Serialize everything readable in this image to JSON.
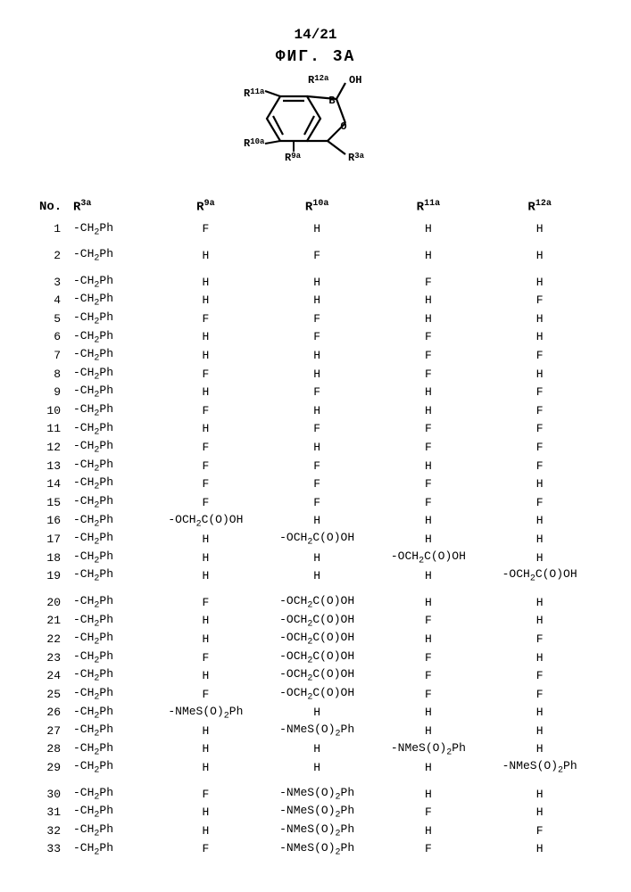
{
  "page_number": "14/21",
  "figure_title": "ФИГ. 3A",
  "structure_labels": {
    "R3a": "R³ᵃ",
    "R9a": "R⁹ᵃ",
    "R10a": "R¹⁰ᵃ",
    "R11a": "R¹¹ᵃ",
    "R12a": "R¹²ᵃ",
    "OH": "OH"
  },
  "chem": {
    "CH2Ph": "CH₂Ph",
    "OCH2COOH": "OCH₂C(O)OH",
    "NMeSO2Ph": "NMeS(O)₂Ph"
  },
  "columns": [
    "No.",
    "R³ᵃ",
    "R⁹ᵃ",
    "R¹⁰ᵃ",
    "R¹¹ᵃ",
    "R¹²ᵃ"
  ],
  "rows": [
    {
      "no": "1",
      "r3a": "CH2Ph",
      "r9a": "F",
      "r10a": "H",
      "r11a": "H",
      "r12a": "H",
      "gap": true
    },
    {
      "no": "2",
      "r3a": "CH2Ph",
      "r9a": "H",
      "r10a": "F",
      "r11a": "H",
      "r12a": "H",
      "gap": true
    },
    {
      "no": "3",
      "r3a": "CH2Ph",
      "r9a": "H",
      "r10a": "H",
      "r11a": "F",
      "r12a": "H"
    },
    {
      "no": "4",
      "r3a": "CH2Ph",
      "r9a": "H",
      "r10a": "H",
      "r11a": "H",
      "r12a": "F"
    },
    {
      "no": "5",
      "r3a": "CH2Ph",
      "r9a": "F",
      "r10a": "F",
      "r11a": "H",
      "r12a": "H"
    },
    {
      "no": "6",
      "r3a": "CH2Ph",
      "r9a": "H",
      "r10a": "F",
      "r11a": "F",
      "r12a": "H"
    },
    {
      "no": "7",
      "r3a": "CH2Ph",
      "r9a": "H",
      "r10a": "H",
      "r11a": "F",
      "r12a": "F"
    },
    {
      "no": "8",
      "r3a": "CH2Ph",
      "r9a": "F",
      "r10a": "H",
      "r11a": "F",
      "r12a": "H"
    },
    {
      "no": "9",
      "r3a": "CH2Ph",
      "r9a": "H",
      "r10a": "F",
      "r11a": "H",
      "r12a": "F"
    },
    {
      "no": "10",
      "r3a": "CH2Ph",
      "r9a": "F",
      "r10a": "H",
      "r11a": "H",
      "r12a": "F"
    },
    {
      "no": "11",
      "r3a": "CH2Ph",
      "r9a": "H",
      "r10a": "F",
      "r11a": "F",
      "r12a": "F"
    },
    {
      "no": "12",
      "r3a": "CH2Ph",
      "r9a": "F",
      "r10a": "H",
      "r11a": "F",
      "r12a": "F"
    },
    {
      "no": "13",
      "r3a": "CH2Ph",
      "r9a": "F",
      "r10a": "F",
      "r11a": "H",
      "r12a": "F"
    },
    {
      "no": "14",
      "r3a": "CH2Ph",
      "r9a": "F",
      "r10a": "F",
      "r11a": "F",
      "r12a": "H"
    },
    {
      "no": "15",
      "r3a": "CH2Ph",
      "r9a": "F",
      "r10a": "F",
      "r11a": "F",
      "r12a": "F"
    },
    {
      "no": "16",
      "r3a": "CH2Ph",
      "r9a": "OCH2COOH",
      "r10a": "H",
      "r11a": "H",
      "r12a": "H"
    },
    {
      "no": "17",
      "r3a": "CH2Ph",
      "r9a": "H",
      "r10a": "OCH2COOH",
      "r11a": "H",
      "r12a": "H"
    },
    {
      "no": "18",
      "r3a": "CH2Ph",
      "r9a": "H",
      "r10a": "H",
      "r11a": "OCH2COOH",
      "r12a": "H"
    },
    {
      "no": "19",
      "r3a": "CH2Ph",
      "r9a": "H",
      "r10a": "H",
      "r11a": "H",
      "r12a": "OCH2COOH",
      "gap": true
    },
    {
      "no": "20",
      "r3a": "CH2Ph",
      "r9a": "F",
      "r10a": "OCH2COOH",
      "r11a": "H",
      "r12a": "H"
    },
    {
      "no": "21",
      "r3a": "CH2Ph",
      "r9a": "H",
      "r10a": "OCH2COOH",
      "r11a": "F",
      "r12a": "H"
    },
    {
      "no": "22",
      "r3a": "CH2Ph",
      "r9a": "H",
      "r10a": "OCH2COOH",
      "r11a": "H",
      "r12a": "F"
    },
    {
      "no": "23",
      "r3a": "CH2Ph",
      "r9a": "F",
      "r10a": "OCH2COOH",
      "r11a": "F",
      "r12a": "H"
    },
    {
      "no": "24",
      "r3a": "CH2Ph",
      "r9a": "H",
      "r10a": "OCH2COOH",
      "r11a": "F",
      "r12a": "F"
    },
    {
      "no": "25",
      "r3a": "CH2Ph",
      "r9a": "F",
      "r10a": "OCH2COOH",
      "r11a": "F",
      "r12a": "F"
    },
    {
      "no": "26",
      "r3a": "CH2Ph",
      "r9a": "NMeSO2Ph",
      "r10a": "H",
      "r11a": "H",
      "r12a": "H"
    },
    {
      "no": "27",
      "r3a": "CH2Ph",
      "r9a": "H",
      "r10a": "NMeSO2Ph",
      "r11a": "H",
      "r12a": "H"
    },
    {
      "no": "28",
      "r3a": "CH2Ph",
      "r9a": "H",
      "r10a": "H",
      "r11a": "NMeSO2Ph",
      "r12a": "H"
    },
    {
      "no": "29",
      "r3a": "CH2Ph",
      "r9a": "H",
      "r10a": "H",
      "r11a": "H",
      "r12a": "NMeSO2Ph",
      "gap": true
    },
    {
      "no": "30",
      "r3a": "CH2Ph",
      "r9a": "F",
      "r10a": "NMeSO2Ph",
      "r11a": "H",
      "r12a": "H"
    },
    {
      "no": "31",
      "r3a": "CH2Ph",
      "r9a": "H",
      "r10a": "NMeSO2Ph",
      "r11a": "F",
      "r12a": "H"
    },
    {
      "no": "32",
      "r3a": "CH2Ph",
      "r9a": "H",
      "r10a": "NMeSO2Ph",
      "r11a": "H",
      "r12a": "F"
    },
    {
      "no": "33",
      "r3a": "CH2Ph",
      "r9a": "F",
      "r10a": "NMeSO2Ph",
      "r11a": "F",
      "r12a": "H"
    }
  ],
  "colors": {
    "text": "#000000",
    "background": "#ffffff"
  },
  "fonts": {
    "body_family": "Courier New, monospace",
    "body_size_pt": 11,
    "header_size_pt": 13
  }
}
